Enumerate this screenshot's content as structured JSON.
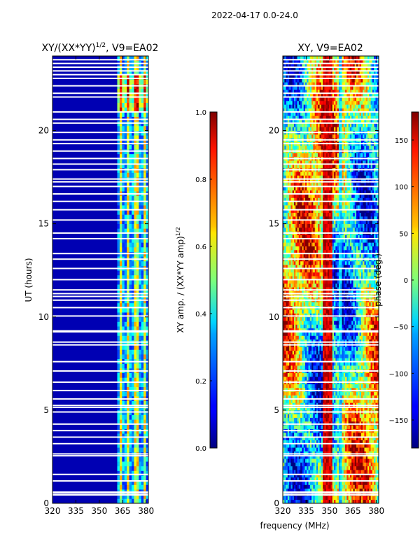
{
  "figure_title": "2022-04-17 0.0-24.0",
  "chart_data": [
    {
      "type": "heatmap",
      "title": "XY/(XX*YY)",
      "title_superscript": "1/2",
      "title_suffix": ", V9=EA02",
      "ylabel": "UT (hours)",
      "x_range": [
        320,
        381.5
      ],
      "y_range": [
        0,
        24
      ],
      "x_ticks": [
        320,
        335,
        350,
        365,
        380
      ],
      "y_ticks": [
        0,
        5,
        10,
        15,
        20
      ],
      "colorbar": {
        "label": "XY amp. / (XX*YY amp)",
        "label_superscript": "1/2",
        "range": [
          0.0,
          1.0
        ],
        "ticks": [
          "0.0",
          "0.2",
          "0.4",
          "0.6",
          "0.8",
          "1.0"
        ]
      },
      "bright_frequency_bands_mhz": [
        [
          362.5,
          364.5
        ],
        [
          368,
          369.5
        ],
        [
          373,
          375.5
        ],
        [
          378.5,
          380.5
        ]
      ],
      "bright_band_level": 0.6,
      "background_level": 0.05,
      "flagged_ut_hours": [
        0.45,
        0.55,
        0.6,
        1.2,
        1.55,
        2.55,
        2.65,
        3.2,
        3.55,
        3.9,
        4.25,
        4.9,
        5.15,
        5.25,
        5.6,
        6.05,
        6.5,
        7.1,
        7.6,
        8.5,
        8.65,
        9.2,
        9.25,
        10.05,
        10.5,
        10.9,
        11.1,
        11.25,
        11.45,
        12.0,
        12.6,
        13.1,
        13.4,
        14.2,
        14.5,
        15.2,
        15.75,
        16.2,
        16.6,
        17.0,
        17.25,
        17.4,
        17.9,
        18.2,
        18.5,
        18.9,
        19.3,
        19.5,
        19.9,
        20.4,
        20.6,
        21.0,
        21.8,
        22.0,
        22.4,
        22.8,
        23.0,
        23.2,
        23.4,
        23.6,
        23.8
      ]
    },
    {
      "type": "heatmap",
      "title": "XY, V9=EA02",
      "xlabel": "frequency (MHz)",
      "x_range": [
        320,
        381.5
      ],
      "y_range": [
        0,
        24
      ],
      "x_ticks": [
        320,
        335,
        350,
        365,
        380
      ],
      "y_ticks": [
        0,
        5,
        10,
        15,
        20
      ],
      "colorbar": {
        "label": "phase (deg.)",
        "range": [
          -180,
          180
        ],
        "ticks": [
          "−150",
          "−100",
          "−50",
          "0",
          "50",
          "100",
          "150"
        ]
      },
      "flagged_ut_hours": [
        0.45,
        0.55,
        0.6,
        1.2,
        1.55,
        2.55,
        2.65,
        3.2,
        3.55,
        3.9,
        4.25,
        4.9,
        5.15,
        5.25,
        5.6,
        6.05,
        6.5,
        7.1,
        7.6,
        8.5,
        8.65,
        9.2,
        9.25,
        10.05,
        10.5,
        10.9,
        11.1,
        11.25,
        11.45,
        12.0,
        12.6,
        13.1,
        13.4,
        14.2,
        14.5,
        15.2,
        15.75,
        16.2,
        16.6,
        17.0,
        17.25,
        17.4,
        17.9,
        18.2,
        18.5,
        18.9,
        19.3,
        19.5,
        19.9,
        20.4,
        20.6,
        21.0,
        21.8,
        22.0,
        22.4,
        22.8,
        23.0,
        23.2,
        23.4,
        23.6,
        23.8
      ]
    }
  ]
}
